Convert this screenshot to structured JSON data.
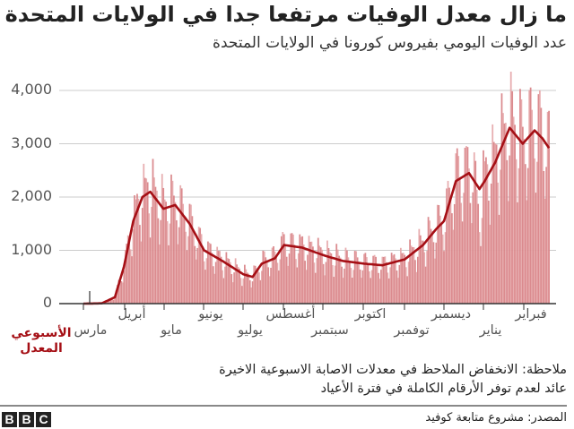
{
  "title": "ما زال معدل الوفيات مرتفعا جدا في الولايات المتحدة",
  "subtitle": "عدد الوفيات اليومي بفيروس كورونا في الولايات المتحدة",
  "avg_label": [
    "الأسبوعي",
    "المعدل"
  ],
  "note": [
    "ملاحظة: الانخفاض الملاحظ في معدلات الاصابة الاسبوعية الاخيرة",
    "عائد لعدم توفر الأرقام الكاملة في فترة الأعياد"
  ],
  "source": "المصدر: مشروع متابعة كوفيد",
  "logo": [
    "B",
    "B",
    "C"
  ],
  "colors": {
    "bar": "#d98589",
    "bar_alt": "#e6a9ab",
    "line": "#a50f15",
    "grid": "#cccccc",
    "axis": "#333333"
  },
  "chart_data": {
    "type": "bar",
    "title": "ما زال معدل الوفيات مرتفعا جدا في الولايات المتحدة",
    "subtitle": "عدد الوفيات اليومي بفيروس كورونا في الولايات المتحدة",
    "xlabel": "",
    "ylabel": "",
    "ylim": [
      0,
      4400
    ],
    "yticks": [
      0,
      1000,
      2000,
      3000,
      4000
    ],
    "ytick_labels": [
      "0",
      "1,000",
      "2,000",
      "3,000",
      "4,000"
    ],
    "grid": true,
    "x_months": [
      "مارس",
      "أبريل",
      "مايو",
      "يونيو",
      "يوليو",
      "أغسطس",
      "سبتمبر",
      "اكتوبر",
      "توفمبر",
      "ديسمبر",
      "يناير",
      "فبراير"
    ],
    "x_month_rows": [
      1,
      0,
      1,
      0,
      1,
      0,
      1,
      0,
      1,
      0,
      1,
      0
    ],
    "series": [
      {
        "name": "المعدل الأسبوعي",
        "type": "line",
        "day_index": [
          0,
          14,
          24,
          31,
          38,
          45,
          51,
          61,
          70,
          81,
          92,
          106,
          122,
          129,
          136,
          146,
          153,
          167,
          184,
          198,
          214,
          228,
          245,
          259,
          269,
          275,
          284,
          294,
          302,
          306,
          314,
          325,
          335,
          344,
          350,
          355
        ],
        "values": [
          0,
          5,
          120,
          700,
          1550,
          2000,
          2100,
          1780,
          1850,
          1500,
          1000,
          800,
          550,
          500,
          750,
          850,
          1100,
          1050,
          900,
          800,
          750,
          720,
          830,
          1100,
          1400,
          1550,
          2300,
          2450,
          2150,
          2300,
          2650,
          3300,
          3000,
          3250,
          3100,
          2920
        ]
      },
      {
        "name": "الوفيات اليومية",
        "type": "bar",
        "note": "daily bars with weekly reporting cycle around the weekly average; peaks ~2,600 (Apr), ~1,400 (Jul-Aug), ~4,400 (Jan)"
      }
    ],
    "x_start": "1 مارس",
    "x_end": "فبراير"
  }
}
